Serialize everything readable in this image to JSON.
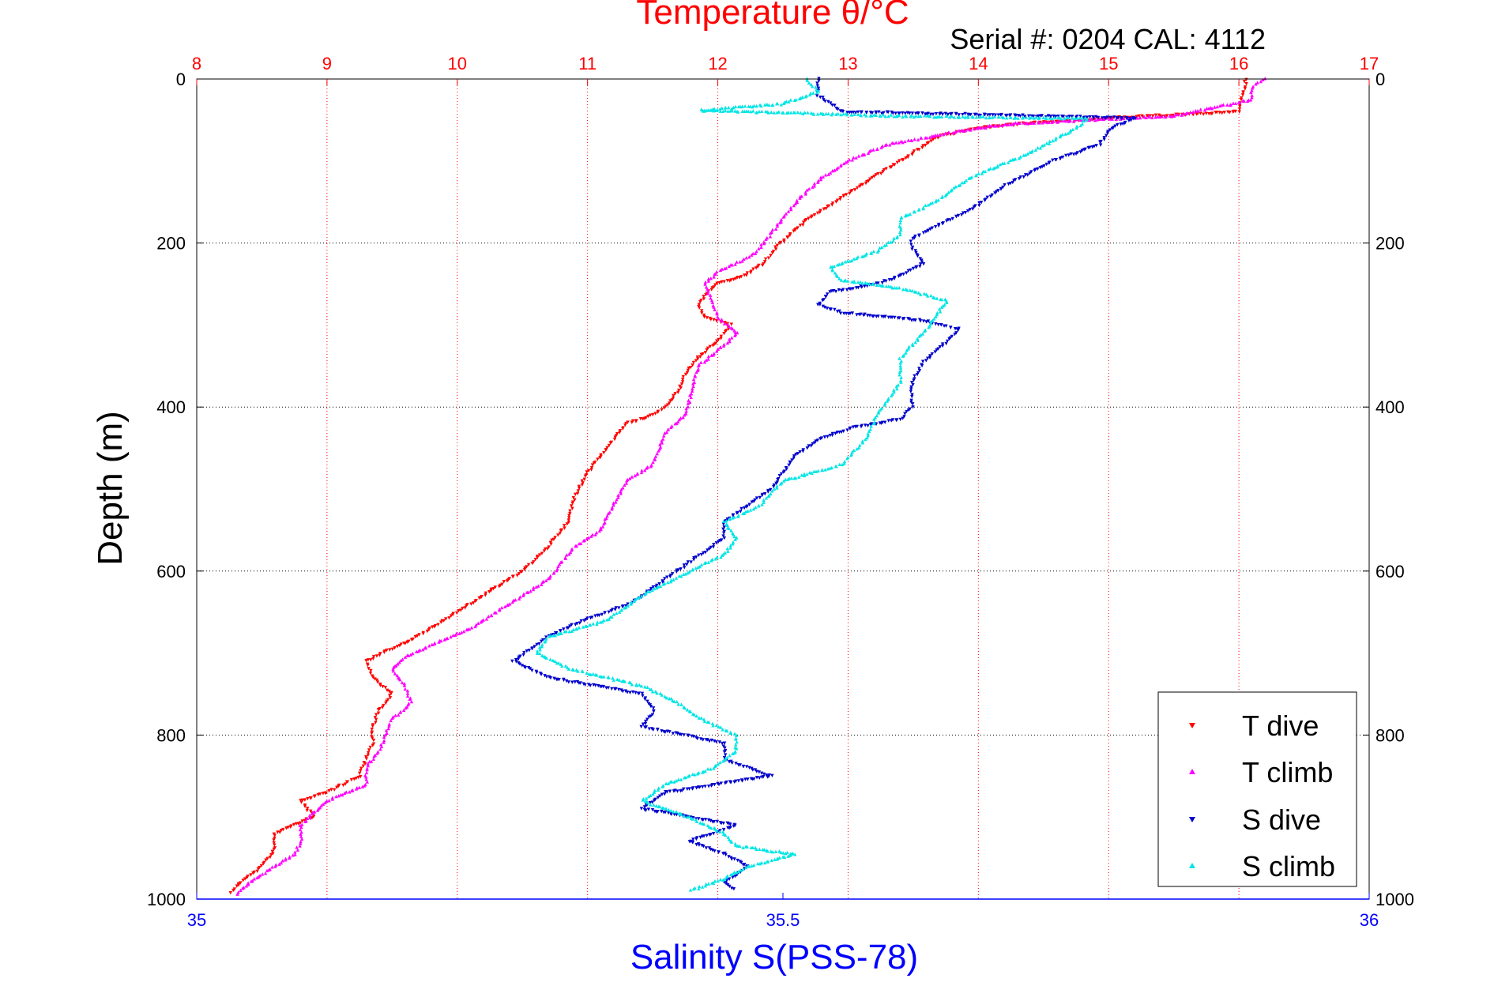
{
  "colors": {
    "temperature_axis": "#ff0000",
    "salinity_axis": "#0000ff",
    "depth_axis": "#000000",
    "t_dive": "#ff0000",
    "t_climb": "#ff00ff",
    "s_dive": "#0000cc",
    "s_climb": "#00e5e5",
    "grid_temperature": "#ff0000",
    "grid_depth": "#000000"
  },
  "chart_data": {
    "type": "scatter",
    "title": "Temperature θ/°C",
    "subtitle": "Serial #: 0204  CAL: 4112",
    "ylabel": "Depth (m)",
    "xlabel_bottom": "Salinity S(PSS-78)",
    "xlabel_top": "Temperature θ/°C",
    "y_reversed": true,
    "ylim": [
      0,
      1000
    ],
    "y_ticks": [
      0,
      200,
      400,
      600,
      800,
      1000
    ],
    "y_tick_labels": [
      "0",
      "200",
      "400",
      "600",
      "800",
      "1000"
    ],
    "x_top_lim": [
      8,
      17
    ],
    "x_top_ticks": [
      8,
      9,
      10,
      11,
      12,
      13,
      14,
      15,
      16,
      17
    ],
    "x_top_tick_labels": [
      "8",
      "9",
      "10",
      "11",
      "12",
      "13",
      "14",
      "15",
      "16",
      "17"
    ],
    "x_bottom_lim": [
      35,
      36
    ],
    "x_bottom_ticks": [
      35,
      35.5,
      36
    ],
    "x_bottom_tick_labels": [
      "35",
      "35.5",
      "36"
    ],
    "grid": "dotted",
    "legend_position": "bottom-right",
    "series": [
      {
        "name": "T dive",
        "axis": "temperature",
        "marker": "triangle-down",
        "points": [
          [
            16.05,
            0
          ],
          [
            16.05,
            10
          ],
          [
            16.03,
            20
          ],
          [
            16.0,
            40
          ],
          [
            15.0,
            48
          ],
          [
            14.3,
            55
          ],
          [
            14.0,
            60
          ],
          [
            13.7,
            70
          ],
          [
            13.5,
            90
          ],
          [
            13.3,
            110
          ],
          [
            13.1,
            130
          ],
          [
            12.9,
            150
          ],
          [
            12.7,
            170
          ],
          [
            12.55,
            190
          ],
          [
            12.45,
            205
          ],
          [
            12.4,
            215
          ],
          [
            12.35,
            225
          ],
          [
            12.2,
            240
          ],
          [
            12.0,
            250
          ],
          [
            11.9,
            265
          ],
          [
            11.85,
            275
          ],
          [
            11.9,
            290
          ],
          [
            12.1,
            300
          ],
          [
            12.0,
            320
          ],
          [
            11.85,
            340
          ],
          [
            11.75,
            360
          ],
          [
            11.7,
            380
          ],
          [
            11.6,
            400
          ],
          [
            11.5,
            410
          ],
          [
            11.3,
            420
          ],
          [
            11.2,
            440
          ],
          [
            11.1,
            460
          ],
          [
            11.0,
            480
          ],
          [
            10.9,
            510
          ],
          [
            10.85,
            540
          ],
          [
            10.7,
            570
          ],
          [
            10.5,
            600
          ],
          [
            10.3,
            620
          ],
          [
            10.1,
            640
          ],
          [
            9.9,
            660
          ],
          [
            9.7,
            680
          ],
          [
            9.5,
            695
          ],
          [
            9.3,
            710
          ],
          [
            9.35,
            730
          ],
          [
            9.5,
            750
          ],
          [
            9.4,
            770
          ],
          [
            9.35,
            790
          ],
          [
            9.35,
            810
          ],
          [
            9.3,
            830
          ],
          [
            9.25,
            850
          ],
          [
            9.0,
            870
          ],
          [
            8.8,
            880
          ],
          [
            8.9,
            900
          ],
          [
            8.6,
            920
          ],
          [
            8.6,
            940
          ],
          [
            8.5,
            960
          ],
          [
            8.3,
            985
          ],
          [
            8.25,
            995
          ]
        ]
      },
      {
        "name": "T climb",
        "axis": "temperature",
        "marker": "triangle-up",
        "points": [
          [
            16.2,
            0
          ],
          [
            16.1,
            10
          ],
          [
            16.1,
            25
          ],
          [
            15.5,
            45
          ],
          [
            14.8,
            50
          ],
          [
            14.2,
            55
          ],
          [
            13.8,
            65
          ],
          [
            13.3,
            80
          ],
          [
            13.0,
            100
          ],
          [
            12.8,
            120
          ],
          [
            12.6,
            150
          ],
          [
            12.45,
            180
          ],
          [
            12.35,
            200
          ],
          [
            12.3,
            210
          ],
          [
            12.2,
            220
          ],
          [
            12.0,
            235
          ],
          [
            11.9,
            250
          ],
          [
            11.95,
            270
          ],
          [
            12.0,
            290
          ],
          [
            12.15,
            310
          ],
          [
            12.0,
            330
          ],
          [
            11.85,
            350
          ],
          [
            11.8,
            380
          ],
          [
            11.75,
            410
          ],
          [
            11.6,
            430
          ],
          [
            11.5,
            470
          ],
          [
            11.3,
            490
          ],
          [
            11.2,
            520
          ],
          [
            11.1,
            550
          ],
          [
            10.9,
            570
          ],
          [
            10.8,
            590
          ],
          [
            10.7,
            610
          ],
          [
            10.5,
            630
          ],
          [
            10.3,
            650
          ],
          [
            10.1,
            670
          ],
          [
            9.8,
            690
          ],
          [
            9.6,
            705
          ],
          [
            9.5,
            720
          ],
          [
            9.6,
            740
          ],
          [
            9.65,
            760
          ],
          [
            9.5,
            780
          ],
          [
            9.45,
            800
          ],
          [
            9.4,
            820
          ],
          [
            9.3,
            840
          ],
          [
            9.3,
            860
          ],
          [
            9.0,
            880
          ],
          [
            8.9,
            895
          ],
          [
            8.8,
            910
          ],
          [
            8.8,
            930
          ],
          [
            8.75,
            945
          ],
          [
            8.6,
            960
          ],
          [
            8.4,
            980
          ],
          [
            8.3,
            995
          ]
        ]
      },
      {
        "name": "S dive",
        "axis": "salinity",
        "marker": "triangle-down",
        "points": [
          [
            35.53,
            0
          ],
          [
            35.53,
            20
          ],
          [
            35.55,
            40
          ],
          [
            35.8,
            48
          ],
          [
            35.78,
            60
          ],
          [
            35.77,
            80
          ],
          [
            35.73,
            100
          ],
          [
            35.69,
            130
          ],
          [
            35.66,
            160
          ],
          [
            35.63,
            180
          ],
          [
            35.61,
            195
          ],
          [
            35.61,
            205
          ],
          [
            35.62,
            225
          ],
          [
            35.6,
            240
          ],
          [
            35.58,
            250
          ],
          [
            35.54,
            260
          ],
          [
            35.53,
            275
          ],
          [
            35.55,
            285
          ],
          [
            35.62,
            295
          ],
          [
            35.65,
            305
          ],
          [
            35.64,
            320
          ],
          [
            35.62,
            345
          ],
          [
            35.61,
            370
          ],
          [
            35.61,
            400
          ],
          [
            35.6,
            415
          ],
          [
            35.56,
            425
          ],
          [
            35.53,
            440
          ],
          [
            35.51,
            460
          ],
          [
            35.5,
            480
          ],
          [
            35.49,
            500
          ],
          [
            35.47,
            520
          ],
          [
            35.45,
            540
          ],
          [
            35.45,
            560
          ],
          [
            35.43,
            580
          ],
          [
            35.41,
            600
          ],
          [
            35.39,
            620
          ],
          [
            35.37,
            640
          ],
          [
            35.33,
            660
          ],
          [
            35.3,
            680
          ],
          [
            35.28,
            700
          ],
          [
            35.27,
            710
          ],
          [
            35.3,
            730
          ],
          [
            35.38,
            750
          ],
          [
            35.39,
            770
          ],
          [
            35.38,
            790
          ],
          [
            35.45,
            810
          ],
          [
            35.45,
            830
          ],
          [
            35.49,
            850
          ],
          [
            35.4,
            870
          ],
          [
            35.38,
            890
          ],
          [
            35.46,
            910
          ],
          [
            35.42,
            930
          ],
          [
            35.45,
            945
          ],
          [
            35.47,
            960
          ],
          [
            35.45,
            980
          ],
          [
            35.46,
            990
          ]
        ]
      },
      {
        "name": "S climb",
        "axis": "salinity",
        "marker": "triangle-up",
        "points": [
          [
            35.52,
            0
          ],
          [
            35.53,
            15
          ],
          [
            35.5,
            30
          ],
          [
            35.43,
            38
          ],
          [
            35.6,
            45
          ],
          [
            35.76,
            48
          ],
          [
            35.75,
            60
          ],
          [
            35.71,
            90
          ],
          [
            35.66,
            120
          ],
          [
            35.63,
            150
          ],
          [
            35.6,
            170
          ],
          [
            35.6,
            190
          ],
          [
            35.58,
            210
          ],
          [
            35.54,
            230
          ],
          [
            35.55,
            245
          ],
          [
            35.6,
            255
          ],
          [
            35.64,
            270
          ],
          [
            35.63,
            290
          ],
          [
            35.62,
            310
          ],
          [
            35.6,
            340
          ],
          [
            35.6,
            370
          ],
          [
            35.58,
            410
          ],
          [
            35.57,
            440
          ],
          [
            35.55,
            470
          ],
          [
            35.5,
            490
          ],
          [
            35.48,
            520
          ],
          [
            35.45,
            540
          ],
          [
            35.46,
            560
          ],
          [
            35.45,
            580
          ],
          [
            35.42,
            600
          ],
          [
            35.38,
            630
          ],
          [
            35.35,
            660
          ],
          [
            35.3,
            680
          ],
          [
            35.29,
            700
          ],
          [
            35.32,
            720
          ],
          [
            35.38,
            740
          ],
          [
            35.41,
            760
          ],
          [
            35.43,
            780
          ],
          [
            35.46,
            800
          ],
          [
            35.46,
            820
          ],
          [
            35.44,
            840
          ],
          [
            35.4,
            860
          ],
          [
            35.38,
            880
          ],
          [
            35.42,
            900
          ],
          [
            35.45,
            920
          ],
          [
            35.46,
            935
          ],
          [
            35.51,
            945
          ],
          [
            35.47,
            960
          ],
          [
            35.45,
            975
          ],
          [
            35.42,
            990
          ]
        ]
      }
    ]
  },
  "legend": {
    "items": [
      {
        "label": "T dive",
        "color": "#ff0000",
        "marker": "triangle-down"
      },
      {
        "label": "T climb",
        "color": "#ff00ff",
        "marker": "triangle-up"
      },
      {
        "label": "S dive",
        "color": "#0000cc",
        "marker": "triangle-down"
      },
      {
        "label": "S climb",
        "color": "#00e5e5",
        "marker": "triangle-up"
      }
    ]
  }
}
